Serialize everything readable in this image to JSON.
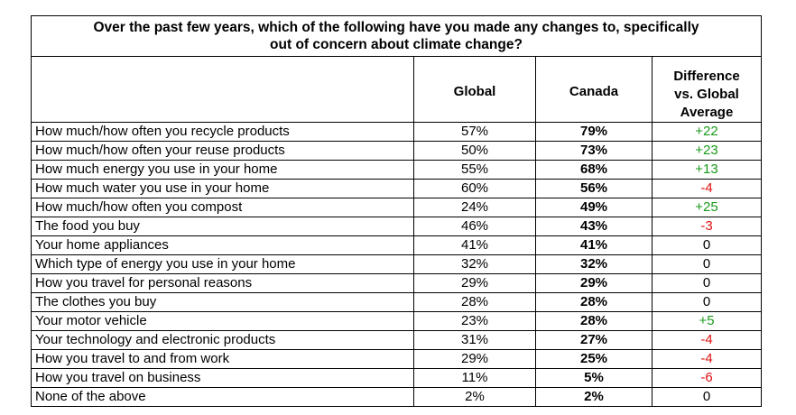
{
  "title_lines": [
    "Over the past few years, which of the following have you made any changes to, specifically",
    "out of concern about climate change?"
  ],
  "columns": {
    "global": "Global",
    "canada": "Canada",
    "difference_lines": [
      "Difference",
      "vs. Global",
      "Average"
    ]
  },
  "rows": [
    {
      "label": "How much/how often you recycle products",
      "global": "57%",
      "canada": "79%",
      "diff": "+22",
      "sign": "pos"
    },
    {
      "label": "How much/how often your reuse products",
      "global": "50%",
      "canada": "73%",
      "diff": "+23",
      "sign": "pos"
    },
    {
      "label": "How much energy you use in your home",
      "global": "55%",
      "canada": "68%",
      "diff": "+13",
      "sign": "pos"
    },
    {
      "label": "How much water you use in your home",
      "global": "60%",
      "canada": "56%",
      "diff": "-4",
      "sign": "neg"
    },
    {
      "label": "How much/how often you compost",
      "global": "24%",
      "canada": "49%",
      "diff": "+25",
      "sign": "pos"
    },
    {
      "label": "The food you buy",
      "global": "46%",
      "canada": "43%",
      "diff": "-3",
      "sign": "neg"
    },
    {
      "label": "Your home appliances",
      "global": "41%",
      "canada": "41%",
      "diff": "0",
      "sign": "zero"
    },
    {
      "label": "Which type of energy you use in your home",
      "global": "32%",
      "canada": "32%",
      "diff": "0",
      "sign": "zero"
    },
    {
      "label": "How you travel for personal reasons",
      "global": "29%",
      "canada": "29%",
      "diff": "0",
      "sign": "zero"
    },
    {
      "label": "The clothes you buy",
      "global": "28%",
      "canada": "28%",
      "diff": "0",
      "sign": "zero"
    },
    {
      "label": "Your motor vehicle",
      "global": "23%",
      "canada": "28%",
      "diff": "+5",
      "sign": "pos"
    },
    {
      "label": "Your technology and electronic products",
      "global": "31%",
      "canada": "27%",
      "diff": "-4",
      "sign": "neg"
    },
    {
      "label": "How you travel to and from work",
      "global": "29%",
      "canada": "25%",
      "diff": "-4",
      "sign": "neg"
    },
    {
      "label": "How you travel on business",
      "global": "11%",
      "canada": "5%",
      "diff": "-6",
      "sign": "neg"
    },
    {
      "label": "None of the above",
      "global": "2%",
      "canada": "2%",
      "diff": "0",
      "sign": "zero"
    }
  ],
  "colors": {
    "positive": "#1a9a1a",
    "negative": "#e01010",
    "zero": "#000000"
  }
}
